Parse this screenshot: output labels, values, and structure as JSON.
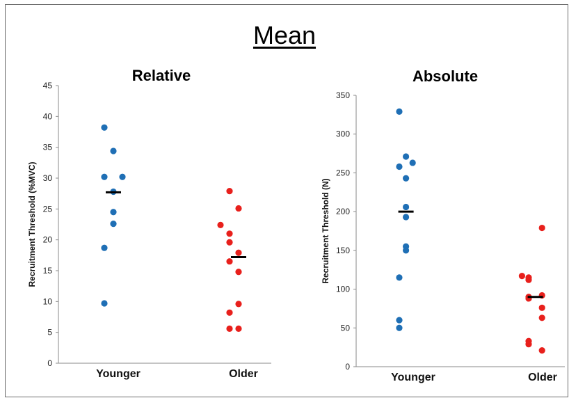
{
  "title": "Mean",
  "chart_data": [
    {
      "type": "scatter",
      "title": "Relative",
      "ylabel": "Recruitment Threshold (%MVC)",
      "xlabel": "",
      "categories": [
        "Younger",
        "Older"
      ],
      "ylim": [
        0,
        45
      ],
      "yticks": [
        0,
        5,
        10,
        15,
        20,
        25,
        30,
        35,
        40,
        45
      ],
      "grid": false,
      "legend": "none",
      "series": [
        {
          "category": "Younger",
          "color": "#1f6fb5",
          "points": [
            {
              "x": 0.0,
              "y": 38.2
            },
            {
              "x": 0.2,
              "y": 34.4
            },
            {
              "x": 0.0,
              "y": 30.2
            },
            {
              "x": 0.4,
              "y": 30.2
            },
            {
              "x": 0.2,
              "y": 27.8
            },
            {
              "x": 0.2,
              "y": 24.5
            },
            {
              "x": 0.2,
              "y": 22.6
            },
            {
              "x": 0.0,
              "y": 18.7
            },
            {
              "x": 0.0,
              "y": 9.7
            }
          ],
          "mean": 27.7
        },
        {
          "category": "Older",
          "color": "#e8201c",
          "points": [
            {
              "x": 0.0,
              "y": 27.9
            },
            {
              "x": 0.2,
              "y": 25.1
            },
            {
              "x": -0.2,
              "y": 22.4
            },
            {
              "x": 0.0,
              "y": 21.0
            },
            {
              "x": 0.0,
              "y": 19.6
            },
            {
              "x": 0.2,
              "y": 17.9
            },
            {
              "x": 0.0,
              "y": 16.5
            },
            {
              "x": 0.2,
              "y": 14.8
            },
            {
              "x": 0.2,
              "y": 9.6
            },
            {
              "x": 0.0,
              "y": 8.2
            },
            {
              "x": 0.0,
              "y": 5.6
            },
            {
              "x": 0.2,
              "y": 5.6
            }
          ],
          "mean": 17.2
        }
      ]
    },
    {
      "type": "scatter",
      "title": "Absolute",
      "ylabel": "Recruitment Threshold (N)",
      "xlabel": "",
      "categories": [
        "Younger",
        "Older"
      ],
      "ylim": [
        0,
        350
      ],
      "yticks": [
        0,
        50,
        100,
        150,
        200,
        250,
        300,
        350
      ],
      "grid": false,
      "legend": "none",
      "series": [
        {
          "category": "Younger",
          "color": "#1f6fb5",
          "points": [
            {
              "x": 0.0,
              "y": 329
            },
            {
              "x": 0.2,
              "y": 271
            },
            {
              "x": 0.4,
              "y": 263
            },
            {
              "x": 0.0,
              "y": 258
            },
            {
              "x": 0.2,
              "y": 243
            },
            {
              "x": 0.2,
              "y": 206
            },
            {
              "x": 0.2,
              "y": 193
            },
            {
              "x": 0.2,
              "y": 155
            },
            {
              "x": 0.2,
              "y": 150
            },
            {
              "x": 0.0,
              "y": 115
            },
            {
              "x": 0.0,
              "y": 60
            },
            {
              "x": 0.0,
              "y": 50
            }
          ],
          "mean": 200
        },
        {
          "category": "Older",
          "color": "#e8201c",
          "points": [
            {
              "x": 0.4,
              "y": 179
            },
            {
              "x": -0.2,
              "y": 117
            },
            {
              "x": 0.0,
              "y": 115
            },
            {
              "x": 0.0,
              "y": 112
            },
            {
              "x": 0.4,
              "y": 92
            },
            {
              "x": 0.0,
              "y": 90
            },
            {
              "x": 0.0,
              "y": 88
            },
            {
              "x": 0.4,
              "y": 76
            },
            {
              "x": 0.4,
              "y": 63
            },
            {
              "x": 0.0,
              "y": 33
            },
            {
              "x": 0.0,
              "y": 29
            },
            {
              "x": 0.4,
              "y": 21
            }
          ],
          "mean": 90
        }
      ]
    }
  ]
}
